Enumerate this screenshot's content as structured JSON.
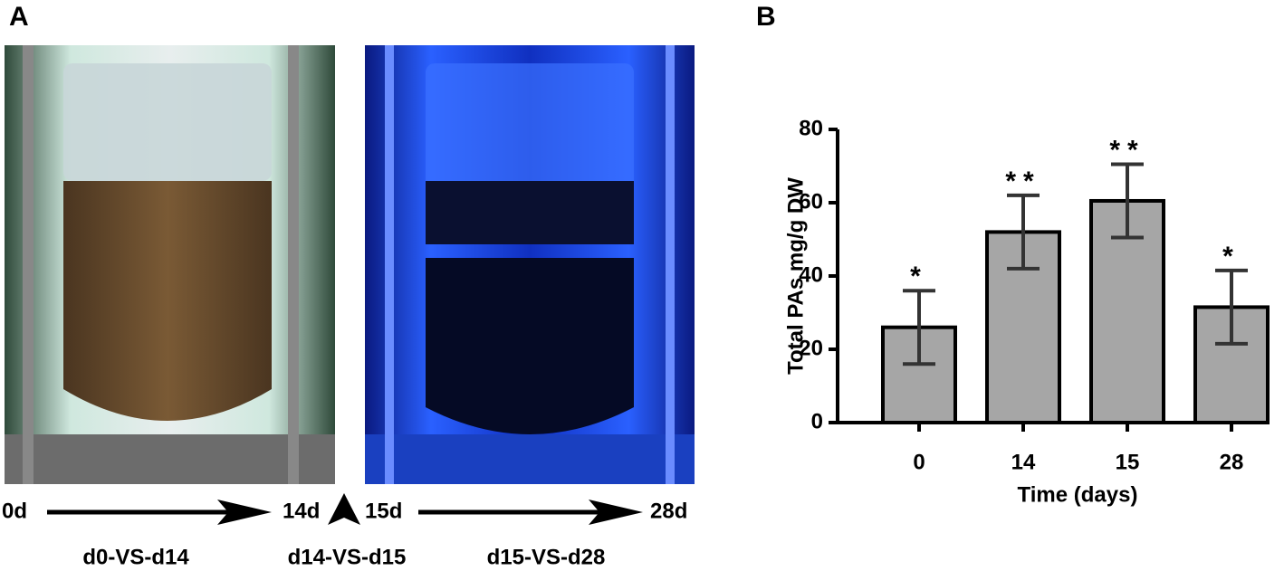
{
  "panel_labels": [
    "A",
    "B"
  ],
  "timeline": {
    "days": [
      "0d",
      "14d",
      "15d",
      "28d"
    ],
    "phases": [
      "d0-VS-d14",
      "d14-VS-d15",
      "d15-VS-d28"
    ]
  },
  "chart_data": {
    "type": "bar",
    "ylabel": "Total PAs mg/g DW",
    "xlabel": "Time (days)",
    "categories": [
      "0",
      "14",
      "15",
      "28"
    ],
    "values": [
      26,
      52,
      60.5,
      31.5
    ],
    "errors": [
      10,
      10,
      10,
      10
    ],
    "annotations": [
      "*",
      "**",
      "**",
      "*"
    ],
    "color": "#a6a6a6",
    "ylim": [
      0,
      80
    ],
    "yticks": [
      0,
      20,
      40,
      60,
      80
    ]
  }
}
